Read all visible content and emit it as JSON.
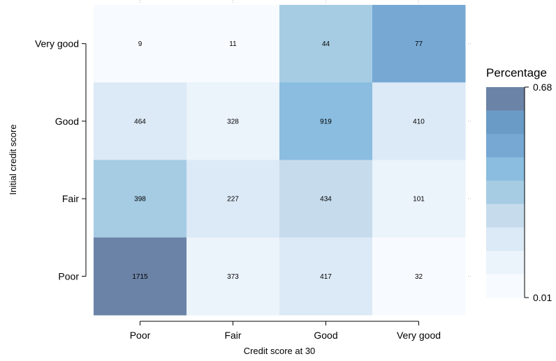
{
  "chart_data": {
    "type": "heatmap",
    "xlabel": "Credit score at 30",
    "ylabel": "Initial credit score",
    "x_categories": [
      "Poor",
      "Fair",
      "Good",
      "Very good"
    ],
    "y_categories": [
      "Very good",
      "Good",
      "Fair",
      "Poor"
    ],
    "counts": [
      [
        9,
        11,
        44,
        77
      ],
      [
        464,
        328,
        919,
        410
      ],
      [
        398,
        227,
        434,
        101
      ],
      [
        1715,
        373,
        417,
        32
      ]
    ],
    "color_levels": [
      [
        0,
        0,
        4,
        6
      ],
      [
        2,
        1,
        5,
        2
      ],
      [
        4,
        2,
        3,
        1
      ],
      [
        8,
        1,
        2,
        0
      ]
    ],
    "legend": {
      "title": "Percentage",
      "max_label": "0.68",
      "min_label": "0.01",
      "palette": [
        "#f7fbff",
        "#ebf3fb",
        "#dce9f6",
        "#c6dcec",
        "#a6cce4",
        "#8abde0",
        "#77a8d4",
        "#6a9bc6",
        "#6b83a6"
      ]
    },
    "grid": false
  }
}
